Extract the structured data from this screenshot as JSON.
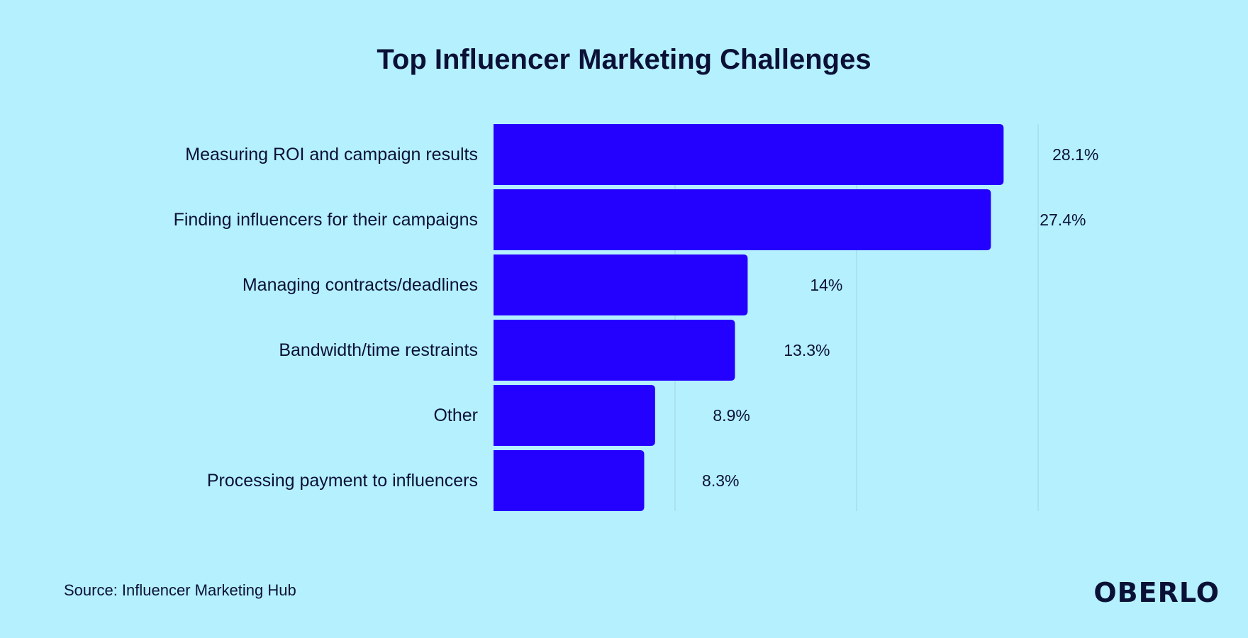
{
  "title": "Top Influencer Marketing Challenges",
  "source": "Source: Influencer Marketing Hub",
  "logo": "OBERLO",
  "colors": {
    "background": "#b5f0ff",
    "bar": "#2400ff",
    "text": "#0b1136",
    "grid": "#9fd3e3"
  },
  "chart_data": {
    "type": "bar",
    "orientation": "horizontal",
    "title": "Top Influencer Marketing Challenges",
    "categories": [
      "Measuring ROI and campaign results",
      "Finding influencers for their campaigns",
      "Managing contracts/deadlines",
      "Bandwidth/time restraints",
      "Other",
      "Processing payment to influencers"
    ],
    "values": [
      28.1,
      27.4,
      14,
      13.3,
      8.9,
      8.3
    ],
    "data_labels": [
      "28.1%",
      "27.4%",
      "14%",
      "13.3%",
      "8.9%",
      "8.3%"
    ],
    "xlim": [
      0,
      30
    ],
    "grid": true,
    "gridlines": [
      10,
      20,
      30
    ],
    "unit": "%"
  }
}
